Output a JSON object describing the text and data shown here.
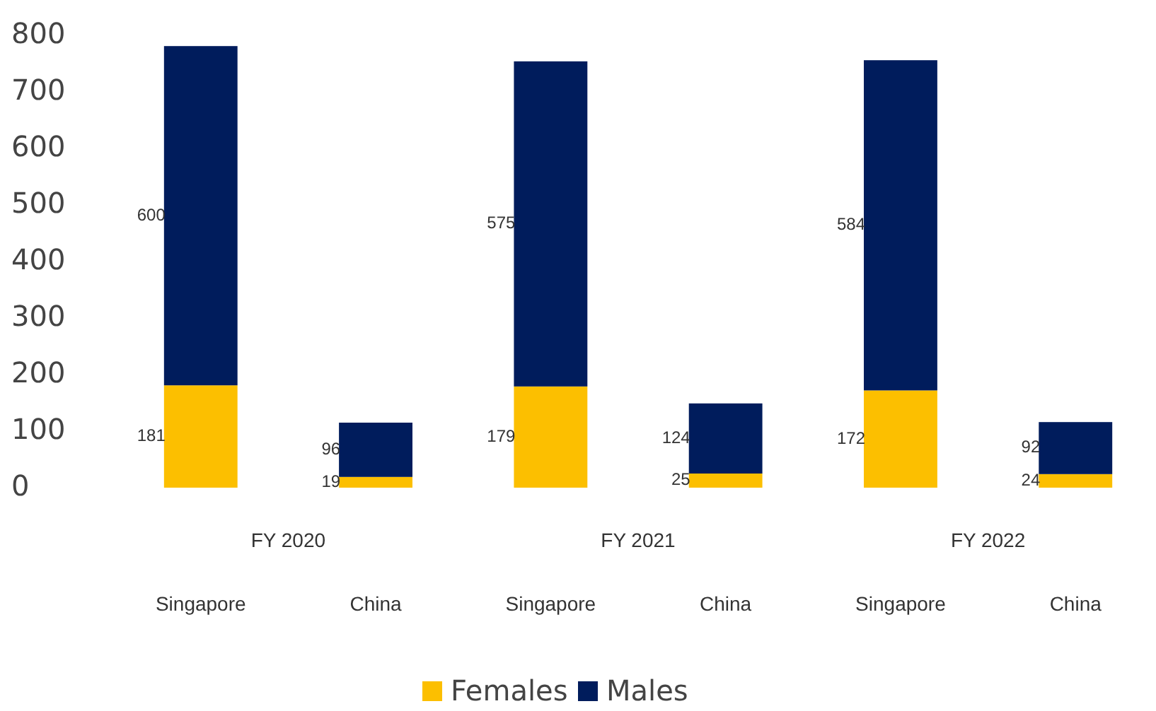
{
  "chart_data": {
    "type": "bar",
    "stacked": true,
    "categories": [
      "Singapore",
      "China",
      "Singapore",
      "China",
      "Singapore",
      "China"
    ],
    "series": [
      {
        "name": "Females",
        "color": "#fcbf00",
        "values": [
          181,
          19,
          179,
          25,
          172,
          24
        ]
      },
      {
        "name": "Males",
        "color": "#001c5c",
        "values": [
          600,
          96,
          575,
          124,
          584,
          92
        ]
      }
    ],
    "ylim": [
      0,
      800
    ],
    "yticks": [
      0,
      100,
      200,
      300,
      400,
      500,
      600,
      700,
      800
    ],
    "grid": false,
    "legend": "bottom",
    "data_labels": true,
    "annotations": [
      "FY 2020",
      "FY 2021",
      "FY 2022"
    ]
  }
}
